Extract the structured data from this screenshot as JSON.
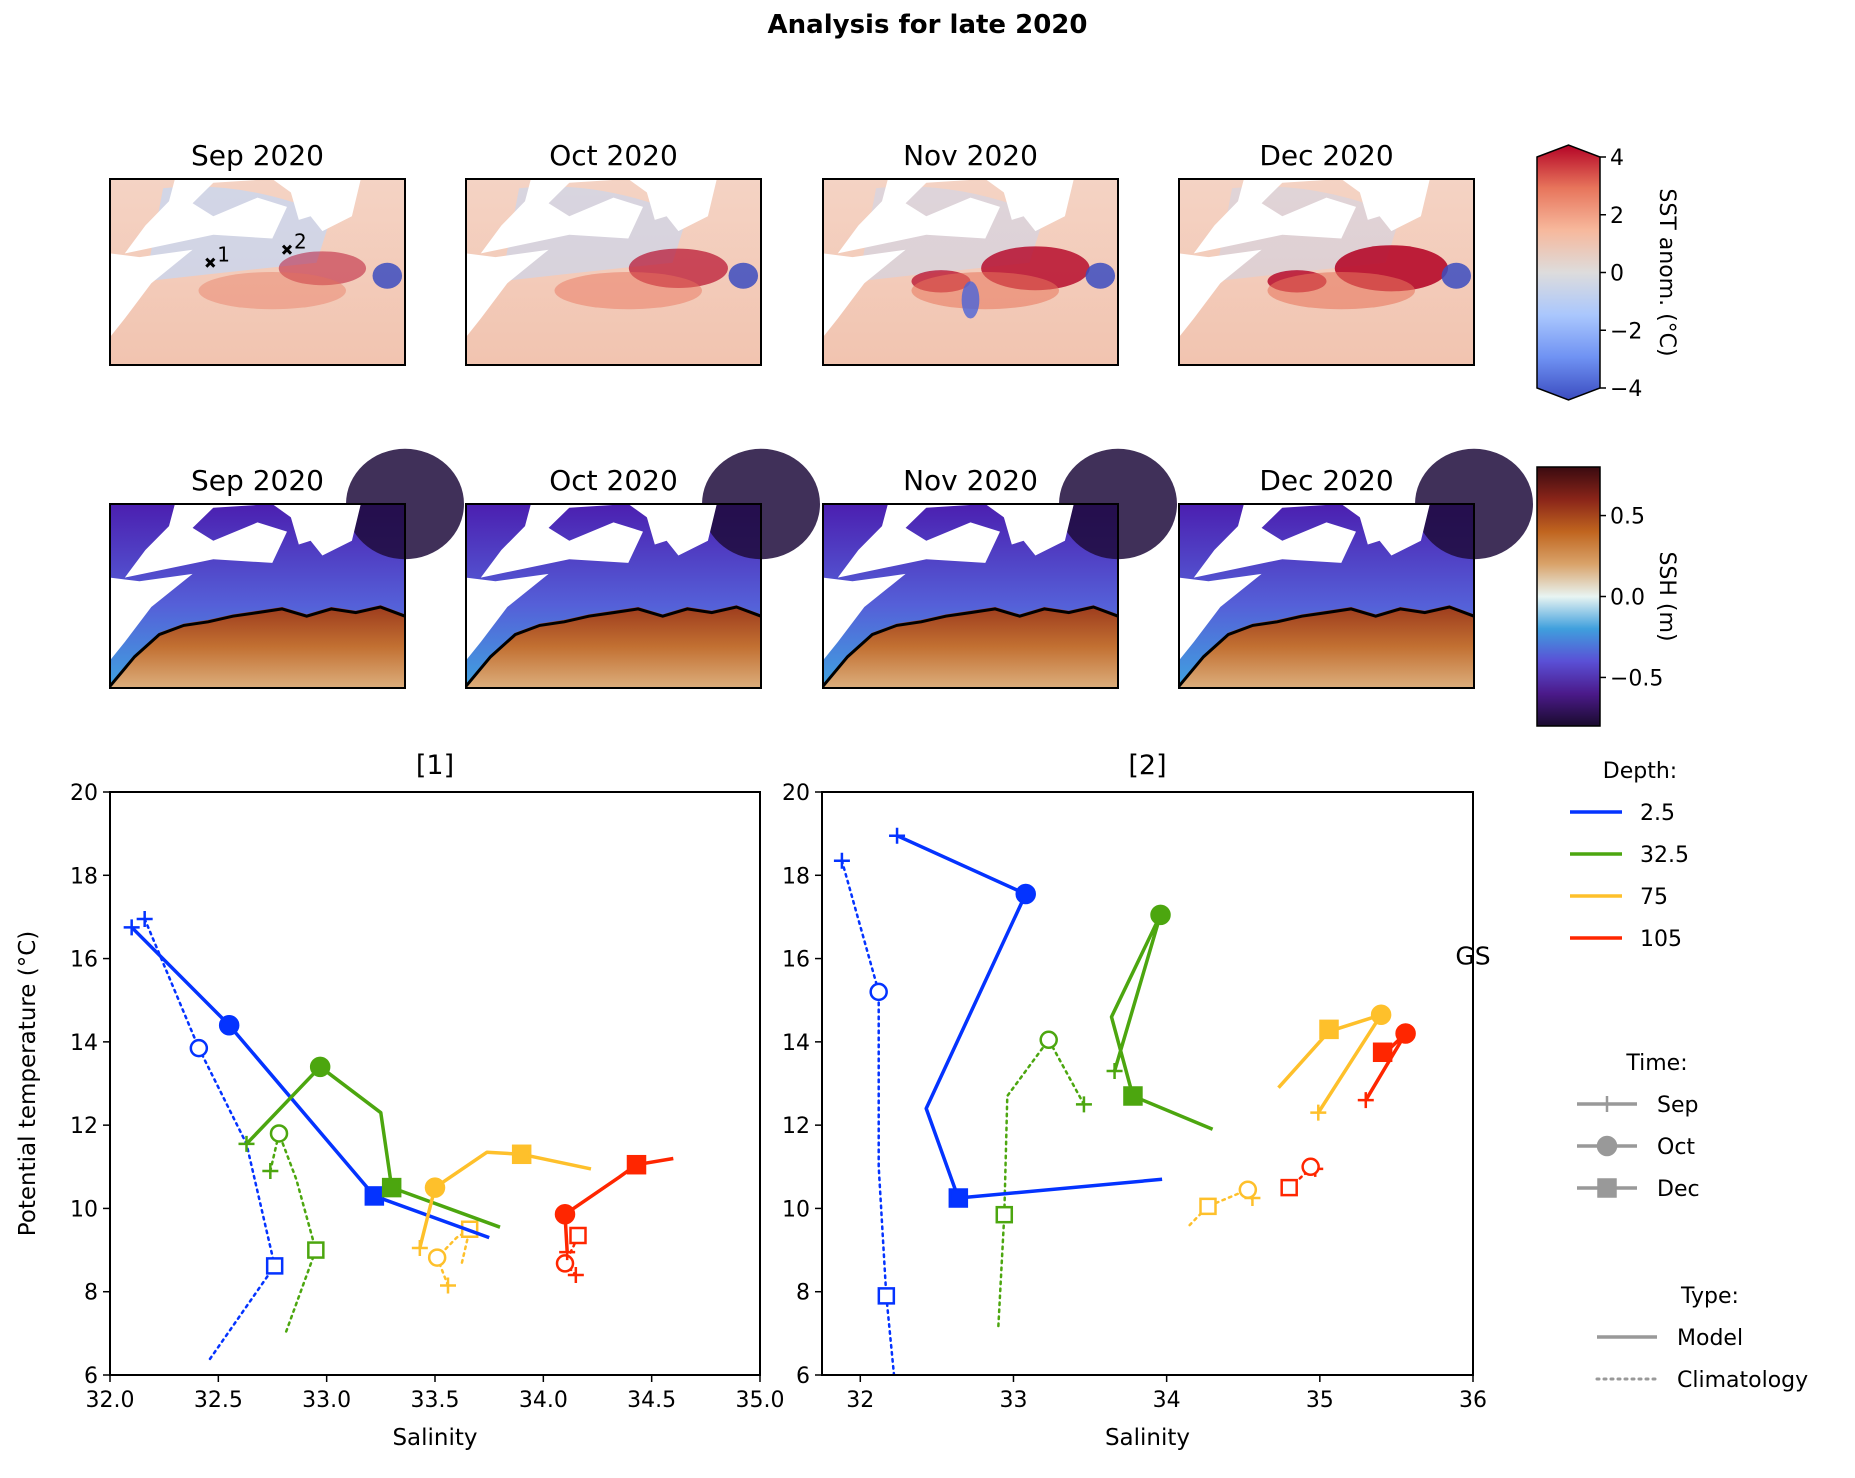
{
  "suptitle": "Analysis for late 2020",
  "sst_maps": {
    "panels": [
      "Sep 2020",
      "Oct 2020",
      "Nov 2020",
      "Dec 2020"
    ],
    "station_labels": [
      "1",
      "2"
    ],
    "colorbar": {
      "label": "SST anom. (°C)",
      "ticks": [
        4,
        2,
        0,
        -2,
        -4
      ],
      "tick_labels": [
        "4",
        "2",
        "0",
        "−2",
        "−4"
      ],
      "range": [
        -4,
        4
      ],
      "colormap": "coolwarm",
      "colors": [
        "#3b4cc0",
        "#6f92f3",
        "#aac7fd",
        "#dddcdc",
        "#f7b89c",
        "#e7745b",
        "#b40426"
      ],
      "extend": "both"
    },
    "map_intensity": [
      0.35,
      0.6,
      0.8,
      0.9
    ]
  },
  "ssh_maps": {
    "panels": [
      "Sep 2020",
      "Oct 2020",
      "Nov 2020",
      "Dec 2020"
    ],
    "colorbar": {
      "label": "SSH (m)",
      "ticks": [
        0.5,
        0.0,
        -0.5
      ],
      "tick_labels": [
        "0.5",
        "0.0",
        "−0.5"
      ],
      "range": [
        -0.8,
        0.8
      ],
      "colormap": "balance",
      "colors": [
        "#1a0b2e",
        "#4b1a8a",
        "#5a50d6",
        "#3f9fdd",
        "#e8f4f2",
        "#d9a36a",
        "#c0651f",
        "#8a2519",
        "#3a0a10"
      ]
    }
  },
  "chart_data": [
    {
      "type": "line",
      "title": "[1]",
      "xlabel": "Salinity",
      "ylabel": "Potential temperature (°C)",
      "xlim": [
        32.0,
        35.0
      ],
      "ylim": [
        6,
        20
      ],
      "xticks": [
        32.0,
        32.5,
        33.0,
        33.5,
        34.0,
        34.5,
        35.0
      ],
      "xtick_labels": [
        "32.0",
        "32.5",
        "33.0",
        "33.5",
        "34.0",
        "34.5",
        "35.0"
      ],
      "yticks": [
        6,
        8,
        10,
        12,
        14,
        16,
        18,
        20
      ],
      "ytick_labels": [
        "6",
        "8",
        "10",
        "12",
        "14",
        "16",
        "18",
        "20"
      ],
      "grid": false,
      "series": [
        {
          "name": "2.5 Model",
          "depth": "2.5",
          "type": "Model",
          "color": "#0433ff",
          "path": [
            [
              32.1,
              16.75
            ],
            [
              32.55,
              14.4
            ],
            [
              33.22,
              10.3
            ],
            [
              33.75,
              9.3
            ]
          ],
          "markers": [
            {
              "t": "Sep",
              "x": 32.1,
              "y": 16.75
            },
            {
              "t": "Oct",
              "x": 32.55,
              "y": 14.4
            },
            {
              "t": "Dec",
              "x": 33.22,
              "y": 10.3
            }
          ]
        },
        {
          "name": "2.5 Climatology",
          "depth": "2.5",
          "type": "Climatology",
          "color": "#0433ff",
          "path": [
            [
              32.16,
              16.95
            ],
            [
              32.41,
              13.85
            ],
            [
              32.63,
              11.55
            ],
            [
              32.76,
              8.62
            ],
            [
              32.45,
              6.3
            ]
          ],
          "markers": [
            {
              "t": "Sep",
              "x": 32.16,
              "y": 16.95
            },
            {
              "t": "Oct",
              "x": 32.41,
              "y": 13.85
            },
            {
              "t": "Dec",
              "x": 32.76,
              "y": 8.62
            }
          ]
        },
        {
          "name": "32.5 Model",
          "depth": "32.5",
          "type": "Model",
          "color": "#4ca60f",
          "path": [
            [
              32.63,
              11.55
            ],
            [
              32.97,
              13.4
            ],
            [
              33.25,
              12.3
            ],
            [
              33.3,
              10.5
            ],
            [
              33.8,
              9.55
            ]
          ],
          "markers": [
            {
              "t": "Sep",
              "x": 32.63,
              "y": 11.55
            },
            {
              "t": "Oct",
              "x": 32.97,
              "y": 13.4
            },
            {
              "t": "Dec",
              "x": 33.3,
              "y": 10.5
            }
          ]
        },
        {
          "name": "32.5 Climatology",
          "depth": "32.5",
          "type": "Climatology",
          "color": "#4ca60f",
          "path": [
            [
              32.74,
              10.9
            ],
            [
              32.78,
              11.8
            ],
            [
              32.86,
              10.7
            ],
            [
              32.95,
              9.0
            ],
            [
              32.81,
              7.0
            ]
          ],
          "markers": [
            {
              "t": "Sep",
              "x": 32.74,
              "y": 10.9
            },
            {
              "t": "Oct",
              "x": 32.78,
              "y": 11.8
            },
            {
              "t": "Dec",
              "x": 32.95,
              "y": 9.0
            }
          ]
        },
        {
          "name": "75 Model",
          "depth": "75",
          "type": "Model",
          "color": "#fec02b",
          "path": [
            [
              33.43,
              9.05
            ],
            [
              33.5,
              10.5
            ],
            [
              33.74,
              11.35
            ],
            [
              33.9,
              11.3
            ],
            [
              34.22,
              10.95
            ]
          ],
          "markers": [
            {
              "t": "Sep",
              "x": 33.43,
              "y": 9.05
            },
            {
              "t": "Oct",
              "x": 33.5,
              "y": 10.5
            },
            {
              "t": "Dec",
              "x": 33.9,
              "y": 11.3
            }
          ]
        },
        {
          "name": "75 Climatology",
          "depth": "75",
          "type": "Climatology",
          "color": "#fec02b",
          "path": [
            [
              33.56,
              8.15
            ],
            [
              33.51,
              8.82
            ],
            [
              33.6,
              9.3
            ],
            [
              33.66,
              9.5
            ],
            [
              33.62,
              8.6
            ]
          ],
          "markers": [
            {
              "t": "Sep",
              "x": 33.56,
              "y": 8.15
            },
            {
              "t": "Oct",
              "x": 33.51,
              "y": 8.82
            },
            {
              "t": "Dec",
              "x": 33.66,
              "y": 9.5
            }
          ]
        },
        {
          "name": "105 Model",
          "depth": "105",
          "type": "Model",
          "color": "#ff2600",
          "path": [
            [
              34.11,
              8.95
            ],
            [
              34.1,
              9.86
            ],
            [
              34.35,
              10.75
            ],
            [
              34.43,
              11.05
            ],
            [
              34.6,
              11.2
            ]
          ],
          "markers": [
            {
              "t": "Sep",
              "x": 34.11,
              "y": 8.95
            },
            {
              "t": "Oct",
              "x": 34.1,
              "y": 9.86
            },
            {
              "t": "Dec",
              "x": 34.43,
              "y": 11.05
            }
          ]
        },
        {
          "name": "105 Climatology",
          "depth": "105",
          "type": "Climatology",
          "color": "#ff2600",
          "path": [
            [
              34.15,
              8.4
            ],
            [
              34.1,
              8.68
            ],
            [
              34.14,
              9.1
            ],
            [
              34.16,
              9.35
            ]
          ],
          "markers": [
            {
              "t": "Sep",
              "x": 34.15,
              "y": 8.4
            },
            {
              "t": "Oct",
              "x": 34.1,
              "y": 8.68
            },
            {
              "t": "Dec",
              "x": 34.16,
              "y": 9.35
            }
          ]
        }
      ]
    },
    {
      "type": "line",
      "title": "[2]",
      "xlabel": "Salinity",
      "ylabel": "",
      "xlim": [
        31.75,
        36.0
      ],
      "ylim": [
        6,
        20
      ],
      "xticks": [
        32,
        33,
        34,
        35,
        36
      ],
      "xtick_labels": [
        "32",
        "33",
        "34",
        "35",
        "36"
      ],
      "yticks": [
        6,
        8,
        10,
        12,
        14,
        16,
        18,
        20
      ],
      "ytick_labels": [
        "6",
        "8",
        "10",
        "12",
        "14",
        "16",
        "18",
        "20"
      ],
      "grid": false,
      "annotation": "GS",
      "series": [
        {
          "name": "2.5 Model",
          "depth": "2.5",
          "type": "Model",
          "color": "#0433ff",
          "path": [
            [
              32.24,
              18.95
            ],
            [
              33.08,
              17.55
            ],
            [
              32.43,
              12.4
            ],
            [
              32.64,
              10.25
            ],
            [
              33.97,
              10.7
            ]
          ],
          "markers": [
            {
              "t": "Sep",
              "x": 32.24,
              "y": 18.95
            },
            {
              "t": "Oct",
              "x": 33.08,
              "y": 17.55
            },
            {
              "t": "Dec",
              "x": 32.64,
              "y": 10.25
            }
          ]
        },
        {
          "name": "2.5 Climatology",
          "depth": "2.5",
          "type": "Climatology",
          "color": "#0433ff",
          "path": [
            [
              31.88,
              18.35
            ],
            [
              32.12,
              15.2
            ],
            [
              32.12,
              11.0
            ],
            [
              32.17,
              7.9
            ],
            [
              32.22,
              6.0
            ]
          ],
          "markers": [
            {
              "t": "Sep",
              "x": 31.88,
              "y": 18.35
            },
            {
              "t": "Oct",
              "x": 32.12,
              "y": 15.2
            },
            {
              "t": "Dec",
              "x": 32.17,
              "y": 7.9
            }
          ]
        },
        {
          "name": "32.5 Model",
          "depth": "32.5",
          "type": "Model",
          "color": "#4ca60f",
          "path": [
            [
              33.66,
              13.3
            ],
            [
              33.96,
              17.05
            ],
            [
              33.64,
              14.6
            ],
            [
              33.78,
              12.7
            ],
            [
              34.3,
              11.9
            ]
          ],
          "markers": [
            {
              "t": "Sep",
              "x": 33.66,
              "y": 13.3
            },
            {
              "t": "Oct",
              "x": 33.96,
              "y": 17.05
            },
            {
              "t": "Dec",
              "x": 33.78,
              "y": 12.7
            }
          ]
        },
        {
          "name": "32.5 Climatology",
          "depth": "32.5",
          "type": "Climatology",
          "color": "#4ca60f",
          "path": [
            [
              33.46,
              12.5
            ],
            [
              33.23,
              14.05
            ],
            [
              32.96,
              12.7
            ],
            [
              32.94,
              9.85
            ],
            [
              32.9,
              7.1
            ]
          ],
          "markers": [
            {
              "t": "Sep",
              "x": 33.46,
              "y": 12.5
            },
            {
              "t": "Oct",
              "x": 33.23,
              "y": 14.05
            },
            {
              "t": "Dec",
              "x": 32.94,
              "y": 9.85
            }
          ]
        },
        {
          "name": "75 Model",
          "depth": "75",
          "type": "Model",
          "color": "#fec02b",
          "path": [
            [
              34.99,
              12.3
            ],
            [
              35.4,
              14.65
            ],
            [
              35.06,
              14.25
            ],
            [
              34.73,
              12.9
            ]
          ],
          "markers": [
            {
              "t": "Sep",
              "x": 34.99,
              "y": 12.3
            },
            {
              "t": "Oct",
              "x": 35.4,
              "y": 14.65
            },
            {
              "t": "Dec",
              "x": 35.06,
              "y": 14.3
            }
          ]
        },
        {
          "name": "75 Climatology",
          "depth": "75",
          "type": "Climatology",
          "color": "#fec02b",
          "path": [
            [
              34.15,
              9.6
            ],
            [
              34.27,
              10.05
            ],
            [
              34.4,
              10.25
            ],
            [
              34.53,
              10.45
            ],
            [
              34.56,
              10.2
            ]
          ],
          "markers": [
            {
              "t": "Sep",
              "x": 34.56,
              "y": 10.25
            },
            {
              "t": "Oct",
              "x": 34.53,
              "y": 10.45
            },
            {
              "t": "Dec",
              "x": 34.27,
              "y": 10.05
            }
          ]
        },
        {
          "name": "105 Model",
          "depth": "105",
          "type": "Model",
          "color": "#ff2600",
          "path": [
            [
              35.3,
              12.6
            ],
            [
              35.56,
              14.2
            ],
            [
              35.43,
              13.75
            ],
            [
              35.46,
              13.85
            ]
          ],
          "markers": [
            {
              "t": "Sep",
              "x": 35.3,
              "y": 12.6
            },
            {
              "t": "Oct",
              "x": 35.56,
              "y": 14.2
            },
            {
              "t": "Dec",
              "x": 35.41,
              "y": 13.75
            }
          ]
        },
        {
          "name": "105 Climatology",
          "depth": "105",
          "type": "Climatology",
          "color": "#ff2600",
          "path": [
            [
              34.8,
              10.5
            ],
            [
              34.94,
              10.95
            ],
            [
              34.97,
              11.0
            ]
          ],
          "markers": [
            {
              "t": "Sep",
              "x": 34.97,
              "y": 10.95
            },
            {
              "t": "Oct",
              "x": 34.94,
              "y": 11.0
            },
            {
              "t": "Dec",
              "x": 34.8,
              "y": 10.5
            }
          ]
        }
      ]
    }
  ],
  "legends": {
    "depth": {
      "title": "Depth:",
      "entries": [
        {
          "label": "2.5",
          "color": "#0433ff"
        },
        {
          "label": "32.5",
          "color": "#4ca60f"
        },
        {
          "label": "75",
          "color": "#fec02b"
        },
        {
          "label": "105",
          "color": "#ff2600"
        }
      ]
    },
    "time": {
      "title": "Time:",
      "entries": [
        {
          "label": "Sep",
          "marker": "plus"
        },
        {
          "label": "Oct",
          "marker": "circle"
        },
        {
          "label": "Dec",
          "marker": "square"
        }
      ],
      "color": "#999999"
    },
    "type": {
      "title": "Type:",
      "entries": [
        {
          "label": "Model",
          "style": "solid"
        },
        {
          "label": "Climatology",
          "style": "dotted"
        }
      ],
      "color": "#999999"
    }
  }
}
